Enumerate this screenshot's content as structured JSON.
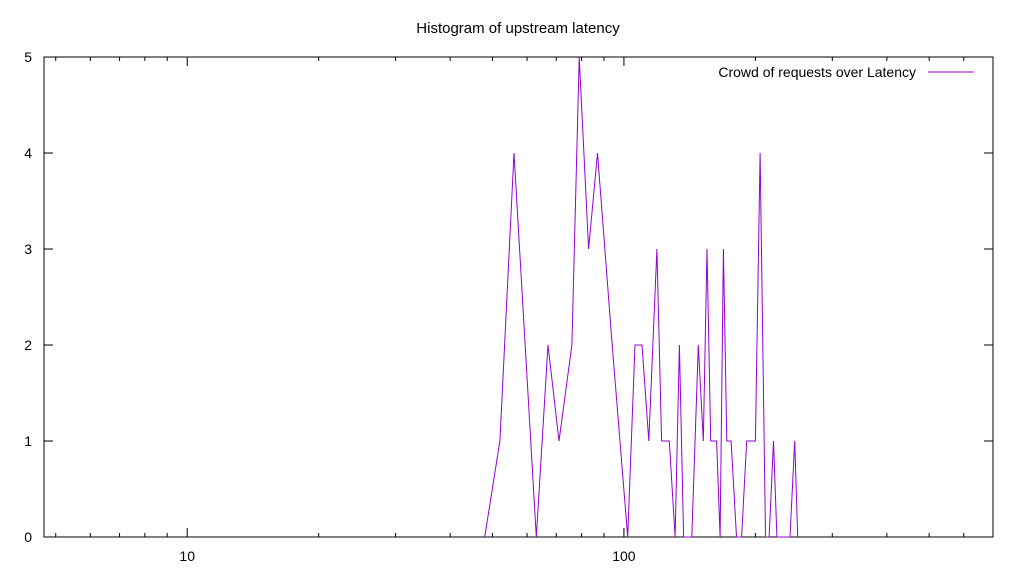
{
  "chart_data": {
    "type": "line",
    "title": "Histogram of upstream latency",
    "xlabel": "",
    "ylabel": "",
    "xscale": "log",
    "xlim": [
      4.7,
      700
    ],
    "ylim": [
      0,
      5
    ],
    "x_ticks": [
      10,
      100
    ],
    "y_ticks": [
      0,
      1,
      2,
      3,
      4,
      5
    ],
    "grid": false,
    "legend_position": "top-right",
    "series": [
      {
        "name": "Crowd of requests over Latency",
        "color": "#9400d3",
        "points": [
          [
            48,
            0
          ],
          [
            52,
            1
          ],
          [
            56,
            4
          ],
          [
            63,
            0
          ],
          [
            67,
            2
          ],
          [
            71,
            1
          ],
          [
            76,
            2
          ],
          [
            79,
            5
          ],
          [
            83,
            3
          ],
          [
            87,
            4
          ],
          [
            94,
            2
          ],
          [
            102,
            0
          ],
          [
            106,
            2
          ],
          [
            110,
            2
          ],
          [
            114,
            1
          ],
          [
            119,
            3
          ],
          [
            122,
            1
          ],
          [
            127,
            1
          ],
          [
            131,
            0
          ],
          [
            134,
            2
          ],
          [
            137,
            0
          ],
          [
            143,
            0
          ],
          [
            148,
            2
          ],
          [
            152,
            1
          ],
          [
            155,
            3
          ],
          [
            158,
            1
          ],
          [
            163,
            1
          ],
          [
            166,
            0
          ],
          [
            169,
            3
          ],
          [
            172,
            1
          ],
          [
            176,
            1
          ],
          [
            181,
            0
          ],
          [
            186,
            0
          ],
          [
            191,
            1
          ],
          [
            200,
            1
          ],
          [
            205,
            4
          ],
          [
            211,
            0
          ],
          [
            215,
            0
          ],
          [
            220,
            1
          ],
          [
            224,
            0
          ],
          [
            240,
            0
          ],
          [
            246,
            1
          ],
          [
            250,
            0
          ]
        ]
      }
    ]
  }
}
